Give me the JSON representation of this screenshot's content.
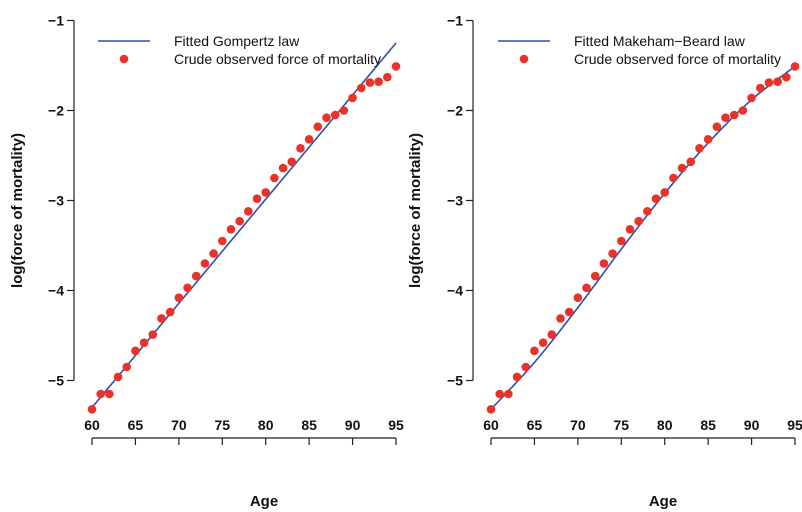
{
  "chart_data": [
    {
      "type": "scatter",
      "title": "",
      "xlabel": "Age",
      "ylabel": "log(force of mortality)",
      "xlim": [
        60,
        95
      ],
      "ylim": [
        -5.4,
        -1.0
      ],
      "xticks": [
        60,
        65,
        70,
        75,
        80,
        85,
        90,
        95
      ],
      "yticks": [
        -5,
        -4,
        -3,
        -2,
        -1
      ],
      "ytick_labels": [
        "−5",
        "−4",
        "−3",
        "−2",
        "−1"
      ],
      "grid": false,
      "legend_position": "top-left",
      "series": [
        {
          "name": "Fitted Gompertz law",
          "kind": "line",
          "color": "#2f4fa8",
          "x": [
            60,
            95
          ],
          "y": [
            -5.3,
            -1.25
          ]
        },
        {
          "name": "Crude observed force of mortality",
          "kind": "points",
          "color": "#e8322a",
          "x": [
            60,
            61,
            62,
            63,
            64,
            65,
            66,
            67,
            68,
            69,
            70,
            71,
            72,
            73,
            74,
            75,
            76,
            77,
            78,
            79,
            80,
            81,
            82,
            83,
            84,
            85,
            86,
            87,
            88,
            89,
            90,
            91,
            92,
            93,
            94,
            95
          ],
          "y": [
            -5.32,
            -5.15,
            -5.15,
            -4.96,
            -4.85,
            -4.67,
            -4.58,
            -4.49,
            -4.31,
            -4.24,
            -4.08,
            -3.97,
            -3.84,
            -3.7,
            -3.59,
            -3.45,
            -3.32,
            -3.23,
            -3.12,
            -2.98,
            -2.91,
            -2.75,
            -2.64,
            -2.57,
            -2.42,
            -2.32,
            -2.18,
            -2.08,
            -2.05,
            -2.0,
            -1.86,
            -1.75,
            -1.69,
            -1.68,
            -1.63,
            -1.51
          ]
        }
      ]
    },
    {
      "type": "scatter",
      "title": "",
      "xlabel": "Age",
      "ylabel": "log(force of mortality)",
      "xlim": [
        60,
        95
      ],
      "ylim": [
        -5.4,
        -1.0
      ],
      "xticks": [
        60,
        65,
        70,
        75,
        80,
        85,
        90,
        95
      ],
      "yticks": [
        -5,
        -4,
        -3,
        -2,
        -1
      ],
      "ytick_labels": [
        "−5",
        "−4",
        "−3",
        "−2",
        "−1"
      ],
      "grid": false,
      "legend_position": "top-left",
      "series": [
        {
          "name": "Fitted Makeham−Beard law",
          "kind": "line",
          "color": "#2f4fa8",
          "x": [
            60,
            65,
            70,
            75,
            80,
            85,
            90,
            95
          ],
          "y": [
            -5.32,
            -4.8,
            -4.19,
            -3.54,
            -2.92,
            -2.36,
            -1.88,
            -1.51
          ]
        },
        {
          "name": "Crude observed force of mortality",
          "kind": "points",
          "color": "#e8322a",
          "x": [
            60,
            61,
            62,
            63,
            64,
            65,
            66,
            67,
            68,
            69,
            70,
            71,
            72,
            73,
            74,
            75,
            76,
            77,
            78,
            79,
            80,
            81,
            82,
            83,
            84,
            85,
            86,
            87,
            88,
            89,
            90,
            91,
            92,
            93,
            94,
            95
          ],
          "y": [
            -5.32,
            -5.15,
            -5.15,
            -4.96,
            -4.85,
            -4.67,
            -4.58,
            -4.49,
            -4.31,
            -4.24,
            -4.08,
            -3.97,
            -3.84,
            -3.7,
            -3.59,
            -3.45,
            -3.32,
            -3.23,
            -3.12,
            -2.98,
            -2.91,
            -2.75,
            -2.64,
            -2.57,
            -2.42,
            -2.32,
            -2.18,
            -2.08,
            -2.05,
            -2.0,
            -1.86,
            -1.75,
            -1.69,
            -1.68,
            -1.63,
            -1.51
          ]
        }
      ]
    }
  ]
}
